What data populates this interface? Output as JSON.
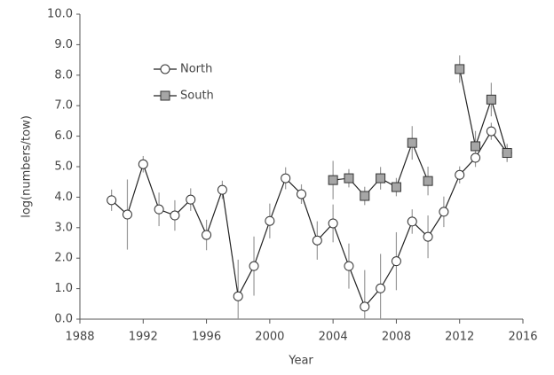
{
  "chart_data": {
    "type": "line",
    "x_label": "Year",
    "y_label": "log(numbers/tow)",
    "x": [
      1990,
      1991,
      1992,
      1993,
      1994,
      1995,
      1996,
      1997,
      1998,
      1999,
      2000,
      2001,
      2002,
      2003,
      2004,
      2005,
      2006,
      2007,
      2008,
      2009,
      2010,
      2011,
      2012,
      2013,
      2014,
      2015
    ],
    "series": [
      {
        "name": "North",
        "color": "#ffffff",
        "marker": "circle",
        "values": [
          3.9,
          3.43,
          5.08,
          3.6,
          3.4,
          3.92,
          2.76,
          4.24,
          0.75,
          1.74,
          3.22,
          4.62,
          4.1,
          2.58,
          3.14,
          1.74,
          0.41,
          1.01,
          1.9,
          3.2,
          2.7,
          3.52,
          4.73,
          5.29,
          6.16,
          5.45
        ],
        "errors": [
          0.35,
          1.15,
          0.27,
          0.55,
          0.5,
          0.37,
          0.5,
          0.3,
          1.2,
          0.97,
          0.57,
          0.36,
          0.32,
          0.63,
          0.62,
          0.74,
          1.2,
          1.13,
          0.95,
          0.4,
          0.7,
          0.5,
          0.28,
          0.3,
          0.28,
          0.3
        ]
      },
      {
        "name": "South",
        "color": "#a6a6a6",
        "marker": "square",
        "values": [
          null,
          null,
          null,
          null,
          null,
          null,
          null,
          null,
          null,
          null,
          null,
          null,
          null,
          null,
          4.56,
          4.62,
          4.04,
          4.62,
          4.33,
          5.78,
          4.53,
          null,
          8.2,
          5.67,
          7.2,
          5.45
        ],
        "errors": [
          null,
          null,
          null,
          null,
          null,
          null,
          null,
          null,
          null,
          null,
          null,
          null,
          null,
          null,
          0.63,
          0.3,
          0.3,
          0.37,
          0.3,
          0.55,
          0.47,
          null,
          0.45,
          0.5,
          0.55,
          0.25
        ]
      }
    ],
    "xlim": [
      1988,
      2016
    ],
    "xticks": [
      1988,
      1992,
      1996,
      2000,
      2004,
      2008,
      2012,
      2016
    ],
    "ylim": [
      0,
      10
    ],
    "yticks": [
      {
        "value": 0,
        "label": "0.0"
      },
      {
        "value": 1,
        "label": "1.0"
      },
      {
        "value": 2,
        "label": "2.0"
      },
      {
        "value": 3,
        "label": "3.0"
      },
      {
        "value": 4,
        "label": "4.0"
      },
      {
        "value": 5,
        "label": "5.0"
      },
      {
        "value": 6,
        "label": "6.0"
      },
      {
        "value": 7,
        "label": "7.0"
      },
      {
        "value": 8,
        "label": "8.0"
      },
      {
        "value": 9,
        "label": "9.0"
      },
      {
        "value": 10,
        "label": "10.0"
      }
    ],
    "grid": false,
    "legend": "upper left"
  }
}
